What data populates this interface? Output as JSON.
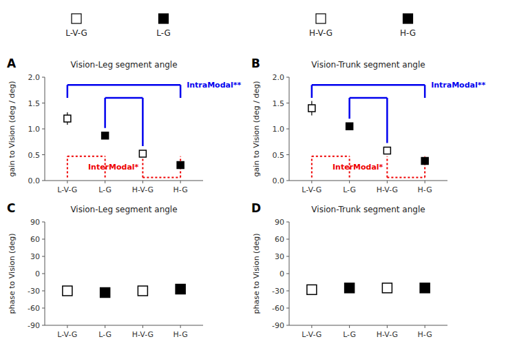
{
  "chart_data": [
    {
      "type": "scatter",
      "marker": "square",
      "title": "Vision-Leg segment angle",
      "panel_label": "A",
      "y_label": "gain to Vision (deg / deg)",
      "categories": [
        "L-V-G",
        "L-G",
        "H-V-G",
        "H-G"
      ],
      "values": [
        1.2,
        0.87,
        0.52,
        0.3
      ],
      "errors": [
        0.12,
        0.07,
        0.06,
        0.06
      ],
      "colors": [
        "white",
        "black",
        "white",
        "black"
      ],
      "ylim": [
        0,
        2.0
      ],
      "yticks": [
        {
          "value": 0,
          "label": "0.0"
        },
        0.5,
        {
          "value": 1.0,
          "label": "1.0"
        },
        1.5,
        {
          "value": 2.0,
          "label": "2.0"
        }
      ],
      "grid": false,
      "annotations": [
        {
          "type": "bracket",
          "text": "IntraModal**",
          "color": "#0000EE",
          "line_style": "solid",
          "levels": [
            1.85,
            1.6
          ]
        },
        {
          "type": "step",
          "text": "InterModal*",
          "color": "#EE0000",
          "line_style": "dotted",
          "levels": [
            0.47,
            0.06
          ]
        }
      ]
    },
    {
      "type": "scatter",
      "marker": "square",
      "title": "Vision-Trunk segment angle",
      "panel_label": "B",
      "y_label": "gain to Vision (deg / deg)",
      "categories": [
        "L-V-G",
        "L-G",
        "H-V-G",
        "H-G"
      ],
      "values": [
        1.4,
        1.05,
        0.58,
        0.38
      ],
      "errors": [
        0.14,
        0.05,
        0.06,
        0.04
      ],
      "colors": [
        "white",
        "black",
        "white",
        "black"
      ],
      "ylim": [
        0,
        2.0
      ],
      "yticks": [
        {
          "value": 0,
          "label": "0.0"
        },
        0.5,
        {
          "value": 1.0,
          "label": "1.0"
        },
        1.5,
        {
          "value": 2.0,
          "label": "2.0"
        }
      ],
      "grid": false,
      "annotations": [
        {
          "type": "bracket",
          "text": "IntraModal**",
          "color": "#0000EE",
          "line_style": "solid",
          "levels": [
            1.85,
            1.6
          ]
        },
        {
          "type": "step",
          "text": "InterModal*",
          "color": "#EE0000",
          "line_style": "dotted",
          "levels": [
            0.47,
            0.06
          ]
        }
      ]
    },
    {
      "type": "scatter",
      "marker": "square",
      "title": "Vision-Leg segment angle",
      "panel_label": "C",
      "y_label": "phase to Vision (deg)",
      "categories": [
        "L-V-G",
        "L-G",
        "H-V-G",
        "H-G"
      ],
      "values": [
        -30,
        -33,
        -30,
        -27
      ],
      "colors": [
        "white",
        "black",
        "white",
        "black"
      ],
      "ylim": [
        -90,
        90
      ],
      "yticks": [
        -90,
        -60,
        -30,
        0,
        30,
        60,
        90
      ],
      "grid": false
    },
    {
      "type": "scatter",
      "marker": "square",
      "title": "Vision-Trunk segment angle",
      "panel_label": "D",
      "y_label": "phase to Vision (deg)",
      "categories": [
        "L-V-G",
        "L-G",
        "H-V-G",
        "H-G"
      ],
      "values": [
        -28,
        -25,
        -25,
        -25
      ],
      "colors": [
        "white",
        "black",
        "white",
        "black"
      ],
      "ylim": [
        -90,
        90
      ],
      "yticks": [
        -90,
        -60,
        -30,
        0,
        30,
        60,
        90
      ],
      "grid": false
    }
  ],
  "legend": {
    "labels": [
      "L-V-G",
      "L-G",
      "H-V-G",
      "H-G"
    ],
    "colors": [
      "white",
      "black",
      "white",
      "black"
    ]
  }
}
